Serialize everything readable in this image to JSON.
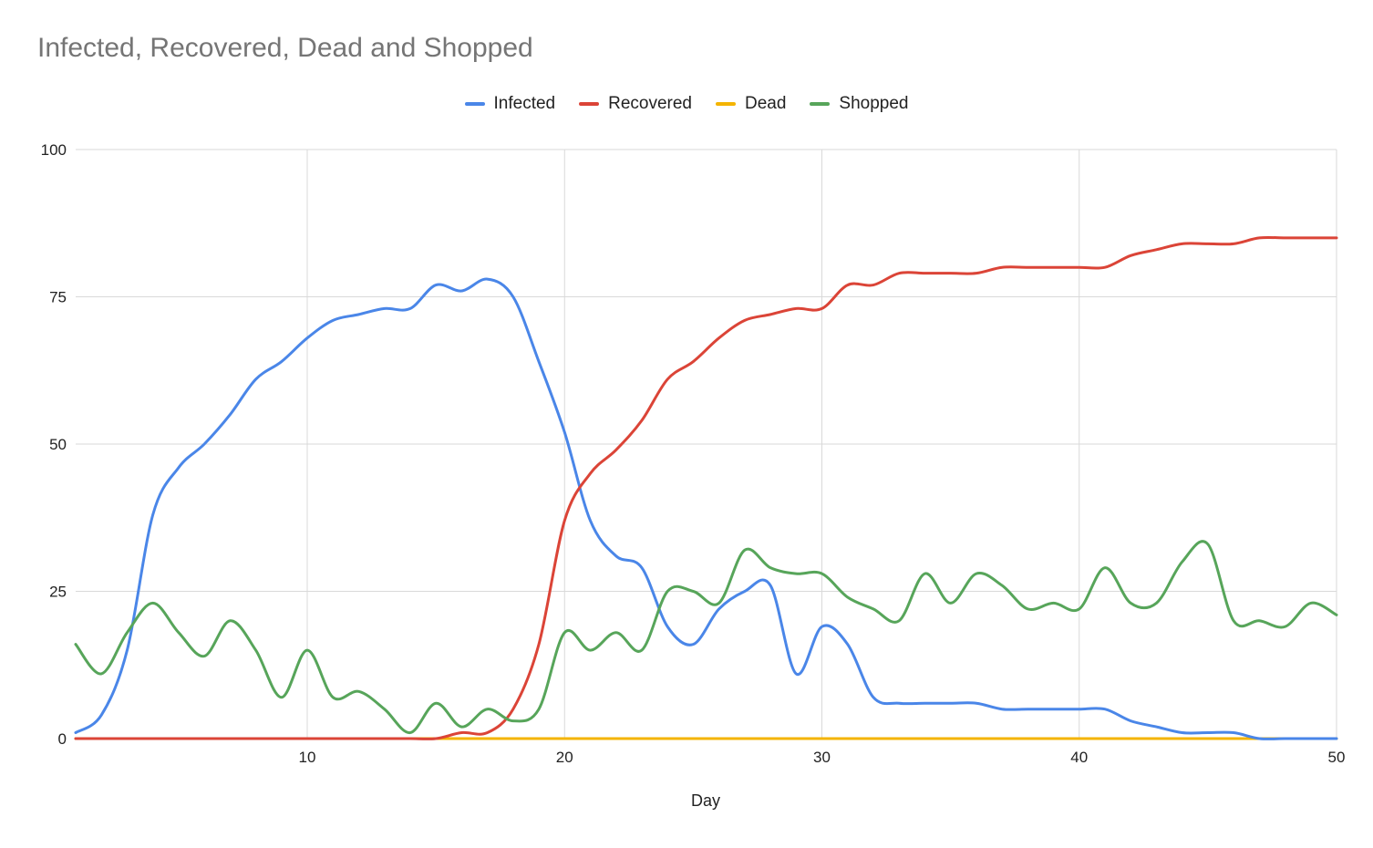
{
  "chart_data": {
    "type": "line",
    "title": "Infected, Recovered, Dead and Shopped",
    "xlabel": "Day",
    "ylabel": "",
    "xlim": [
      1,
      50
    ],
    "ylim": [
      0,
      100
    ],
    "x_ticks": [
      10,
      20,
      30,
      40,
      50
    ],
    "y_ticks": [
      0,
      25,
      50,
      75,
      100
    ],
    "grid": true,
    "legend_position": "top-center",
    "x": [
      1,
      2,
      3,
      4,
      5,
      6,
      7,
      8,
      9,
      10,
      11,
      12,
      13,
      14,
      15,
      16,
      17,
      18,
      19,
      20,
      21,
      22,
      23,
      24,
      25,
      26,
      27,
      28,
      29,
      30,
      31,
      32,
      33,
      34,
      35,
      36,
      37,
      38,
      39,
      40,
      41,
      42,
      43,
      44,
      45,
      46,
      47,
      48,
      49,
      50
    ],
    "series": [
      {
        "name": "Infected",
        "color": "#4a86e8",
        "values": [
          1,
          4,
          15,
          38,
          46,
          50,
          55,
          61,
          64,
          68,
          71,
          72,
          73,
          73,
          77,
          76,
          78,
          75,
          64,
          52,
          37,
          31,
          29,
          19,
          16,
          22,
          25,
          26,
          11,
          19,
          16,
          7,
          6,
          6,
          6,
          6,
          5,
          5,
          5,
          5,
          5,
          3,
          2,
          1,
          1,
          1,
          0,
          0,
          0,
          0
        ]
      },
      {
        "name": "Recovered",
        "color": "#db4437",
        "values": [
          0,
          0,
          0,
          0,
          0,
          0,
          0,
          0,
          0,
          0,
          0,
          0,
          0,
          0,
          0,
          1,
          1,
          5,
          16,
          37,
          45,
          49,
          54,
          61,
          64,
          68,
          71,
          72,
          73,
          73,
          77,
          77,
          79,
          79,
          79,
          79,
          80,
          80,
          80,
          80,
          80,
          82,
          83,
          84,
          84,
          84,
          85,
          85,
          85,
          85
        ]
      },
      {
        "name": "Dead",
        "color": "#f4b400",
        "values": [
          0,
          0,
          0,
          0,
          0,
          0,
          0,
          0,
          0,
          0,
          0,
          0,
          0,
          0,
          0,
          0,
          0,
          0,
          0,
          0,
          0,
          0,
          0,
          0,
          0,
          0,
          0,
          0,
          0,
          0,
          0,
          0,
          0,
          0,
          0,
          0,
          0,
          0,
          0,
          0,
          0,
          0,
          0,
          0,
          0,
          0,
          0,
          0,
          0,
          0
        ]
      },
      {
        "name": "Shopped",
        "color": "#57a55a",
        "values": [
          16,
          11,
          18,
          23,
          18,
          14,
          20,
          15,
          7,
          15,
          7,
          8,
          5,
          1,
          6,
          2,
          5,
          3,
          5,
          18,
          15,
          18,
          15,
          25,
          25,
          23,
          32,
          29,
          28,
          28,
          24,
          22,
          20,
          28,
          23,
          28,
          26,
          22,
          23,
          22,
          29,
          23,
          23,
          30,
          33,
          20,
          20,
          19,
          23,
          21
        ]
      }
    ]
  }
}
